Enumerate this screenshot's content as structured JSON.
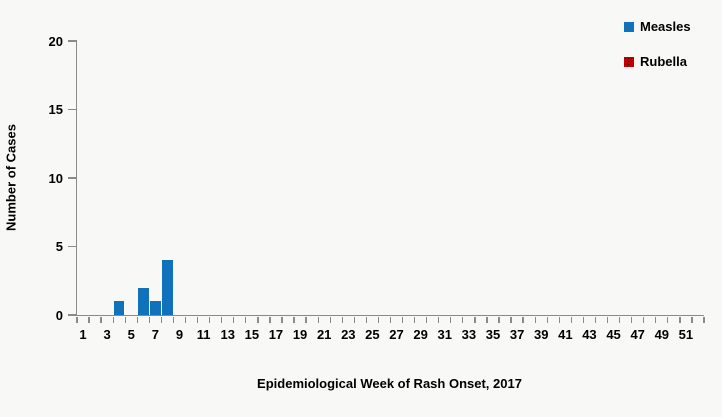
{
  "colors": {
    "background": "#F8F8F6",
    "axis": "#8A8A8A",
    "text": "#000000",
    "measles_blue": "#1072BA",
    "rubella_red": "#C00000"
  },
  "chart_data": {
    "type": "bar",
    "title": "",
    "xlabel": "Epidemiological Week of Rash Onset, 2017",
    "ylabel": "Number of Cases",
    "categories": [
      1,
      2,
      3,
      4,
      5,
      6,
      7,
      8,
      9,
      10,
      11,
      12,
      13,
      14,
      15,
      16,
      17,
      18,
      19,
      20,
      21,
      22,
      23,
      24,
      25,
      26,
      27,
      28,
      29,
      30,
      31,
      32,
      33,
      34,
      35,
      36,
      37,
      38,
      39,
      40,
      41,
      42,
      43,
      44,
      45,
      46,
      47,
      48,
      49,
      50,
      51,
      52
    ],
    "xticklabels": [
      "1",
      "3",
      "5",
      "7",
      "9",
      "11",
      "13",
      "15",
      "17",
      "19",
      "21",
      "23",
      "25",
      "27",
      "29",
      "31",
      "33",
      "35",
      "37",
      "39",
      "41",
      "43",
      "45",
      "47",
      "49",
      "51"
    ],
    "yticks": [
      0,
      5,
      10,
      15,
      20
    ],
    "ylim": [
      0,
      20
    ],
    "grid": false,
    "legend_position": "top-right",
    "series": [
      {
        "name": "Measles",
        "color": "#1072BA",
        "pattern": "solid",
        "values": [
          0,
          0,
          0,
          1,
          0,
          2,
          1,
          4,
          0,
          0,
          0,
          0,
          0,
          0,
          0,
          0,
          0,
          0,
          0,
          0,
          0,
          0,
          0,
          0,
          0,
          0,
          0,
          0,
          0,
          0,
          0,
          0,
          0,
          0,
          0,
          0,
          0,
          0,
          0,
          0,
          0,
          0,
          0,
          0,
          0,
          0,
          0,
          0,
          0,
          0,
          0,
          0
        ]
      },
      {
        "name": "Rubella",
        "color": "#C00000",
        "pattern": "dotted",
        "values": [
          0,
          0,
          0,
          0,
          0,
          0,
          0,
          0,
          0,
          0,
          0,
          0,
          0,
          0,
          0,
          0,
          0,
          0,
          0,
          0,
          0,
          0,
          0,
          0,
          0,
          0,
          0,
          0,
          0,
          0,
          0,
          0,
          0,
          0,
          0,
          0,
          0,
          0,
          0,
          0,
          0,
          0,
          0,
          0,
          0,
          0,
          0,
          0,
          0,
          0,
          0,
          0
        ]
      }
    ],
    "nonzero_points": [
      {
        "series": "Measles",
        "week": 4,
        "cases": 1
      },
      {
        "series": "Measles",
        "week": 6,
        "cases": 2
      },
      {
        "series": "Measles",
        "week": 7,
        "cases": 1
      },
      {
        "series": "Measles",
        "week": 8,
        "cases": 4
      }
    ]
  }
}
